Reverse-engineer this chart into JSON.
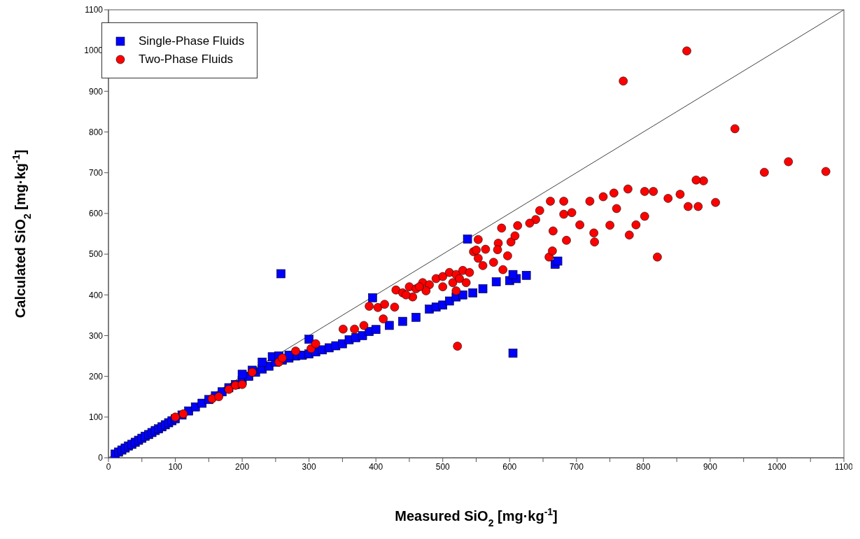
{
  "chart_data": {
    "type": "scatter",
    "xlabel": "Measured SiO$_{2}$ [mg·kg$^{-1}$]",
    "ylabel": "Calculated SiO$_{2}$ [mg·kg$^{-1}$]",
    "xlim": [
      0,
      1100
    ],
    "ylim": [
      0,
      1100
    ],
    "xticks": [
      0,
      {
        "value": 50,
        "label": null
      },
      100,
      {
        "value": 150,
        "label": null
      },
      200,
      {
        "value": 250,
        "label": null
      },
      300,
      {
        "value": 350,
        "label": null
      },
      400,
      {
        "value": 450,
        "label": null
      },
      500,
      {
        "value": 550,
        "label": null
      },
      600,
      {
        "value": 650,
        "label": null
      },
      700,
      {
        "value": 750,
        "label": null
      },
      800,
      {
        "value": 850,
        "label": null
      },
      900,
      {
        "value": 950,
        "label": null
      },
      1000,
      {
        "value": 1050,
        "label": null
      },
      1100
    ],
    "yticks": [
      0,
      100,
      200,
      300,
      400,
      500,
      600,
      700,
      800,
      900,
      1000,
      1100
    ],
    "legend": "top left",
    "series": [
      {
        "type": "line",
        "color": "#404040",
        "marker": "none",
        "x": [
          0,
          1100
        ],
        "values": [
          0,
          1100
        ]
      },
      {
        "name": "Single-Phase Fluids",
        "color": "#0000ff",
        "marker": "square",
        "x": [
          10,
          15,
          20,
          25,
          30,
          35,
          40,
          45,
          50,
          55,
          60,
          65,
          70,
          75,
          80,
          85,
          90,
          95,
          100,
          110,
          120,
          130,
          140,
          150,
          160,
          170,
          180,
          190,
          200,
          210,
          220,
          230,
          240,
          250,
          260,
          270,
          280,
          290,
          300,
          310,
          320,
          330,
          340,
          350,
          360,
          370,
          380,
          390,
          400,
          420,
          440,
          460,
          480,
          490,
          500,
          510,
          520,
          530,
          545,
          560,
          580,
          600,
          610,
          625,
          668,
          672,
          605,
          200,
          215,
          230,
          245,
          255,
          270,
          300,
          258,
          395,
          537,
          605
        ],
        "values": [
          9,
          14,
          19,
          24,
          29,
          33,
          38,
          43,
          48,
          53,
          57,
          62,
          67,
          71,
          76,
          81,
          86,
          91,
          96,
          105,
          115,
          125,
          134,
          143,
          152,
          162,
          172,
          180,
          190,
          200,
          210,
          218,
          225,
          235,
          240,
          245,
          250,
          252,
          255,
          260,
          265,
          270,
          275,
          280,
          290,
          295,
          300,
          310,
          315,
          325,
          335,
          345,
          365,
          370,
          375,
          385,
          395,
          400,
          405,
          415,
          432,
          435,
          440,
          448,
          475,
          483,
          450,
          205,
          215,
          235,
          248,
          250,
          252,
          291,
          452,
          393,
          537,
          257
        ]
      },
      {
        "name": "Two-Phase Fluids",
        "color": "#ff0000",
        "marker": "circle",
        "x": [
          100,
          112,
          155,
          165,
          180,
          190,
          200,
          215,
          255,
          260,
          280,
          303,
          310,
          351,
          368,
          382,
          390,
          403,
          413,
          428,
          411,
          430,
          440,
          450,
          460,
          470,
          480,
          490,
          500,
          510,
          520,
          530,
          455,
          475,
          500,
          515,
          525,
          535,
          445,
          465,
          520,
          540,
          522,
          546,
          553,
          560,
          583,
          576,
          590,
          602,
          865,
          770,
          937,
          981,
          1017,
          1073,
          821,
          908,
          890,
          879,
          882,
          867,
          855,
          837,
          815,
          802,
          789,
          802,
          779,
          777,
          756,
          740,
          720,
          760,
          750,
          726,
          727,
          705,
          693,
          681,
          661,
          645,
          681,
          665,
          685,
          639,
          612,
          608,
          588,
          553,
          550,
          564,
          582,
          597,
          659,
          664,
          630
        ],
        "values": [
          100,
          108,
          145,
          150,
          168,
          178,
          180,
          210,
          235,
          245,
          262,
          268,
          280,
          316,
          316,
          325,
          372,
          369,
          377,
          370,
          341,
          412,
          405,
          420,
          415,
          430,
          425,
          440,
          445,
          455,
          450,
          460,
          395,
          410,
          420,
          430,
          440,
          430,
          400,
          420,
          410,
          455,
          274,
          506,
          490,
          472,
          527,
          480,
          462,
          530,
          999,
          925,
          808,
          701,
          727,
          703,
          493,
          627,
          680,
          682,
          617,
          617,
          647,
          637,
          654,
          654,
          572,
          593,
          547,
          660,
          650,
          641,
          630,
          612,
          571,
          552,
          530,
          572,
          602,
          630,
          630,
          607,
          598,
          557,
          534,
          585,
          570,
          545,
          564,
          536,
          510,
          512,
          511,
          496,
          493,
          508,
          576
        ]
      }
    ]
  }
}
